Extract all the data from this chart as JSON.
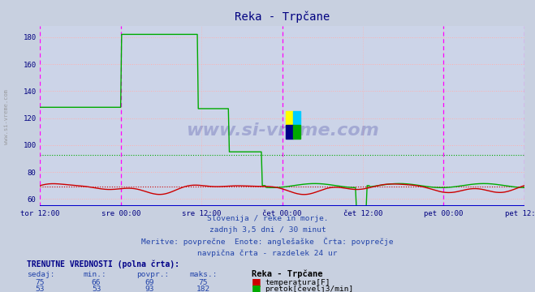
{
  "title": "Reka - Trpčane",
  "title_color": "#000080",
  "bg_color": "#c8d0e0",
  "plot_bg_color": "#ccd4e8",
  "grid_h_color": "#ffb0b0",
  "grid_v_color": "#ffb0b0",
  "xlabel_ticks": [
    "tor 12:00",
    "sre 00:00",
    "sre 12:00",
    "čet 00:00",
    "čet 12:00",
    "pet 00:00",
    "pet 12:00"
  ],
  "ylim": [
    55,
    188
  ],
  "yticks": [
    60,
    80,
    100,
    120,
    140,
    160,
    180
  ],
  "temp_color": "#cc0000",
  "flow_color": "#00aa00",
  "temp_avg": 69,
  "flow_avg": 93,
  "subtitle_lines": [
    "Slovenija / reke in morje.",
    "zadnjh 3,5 dni / 30 minut",
    "Meritve: povprečne  Enote: anglešaške  Črta: povprečje",
    "navpična črta - razdelek 24 ur"
  ],
  "table_header": "TRENUTNE VREDNOSTI (polna črta):",
  "col_headers": [
    "sedaj:",
    "min.:",
    "povpr.:",
    "maks.:"
  ],
  "temp_row": [
    75,
    66,
    69,
    75
  ],
  "flow_row": [
    53,
    53,
    93,
    182
  ],
  "station_label": "Reka - Trpčane",
  "temp_label": "temperatura[F]",
  "flow_label": "pretok[čevelj3/min]",
  "watermark": "www.si-vreme.com"
}
